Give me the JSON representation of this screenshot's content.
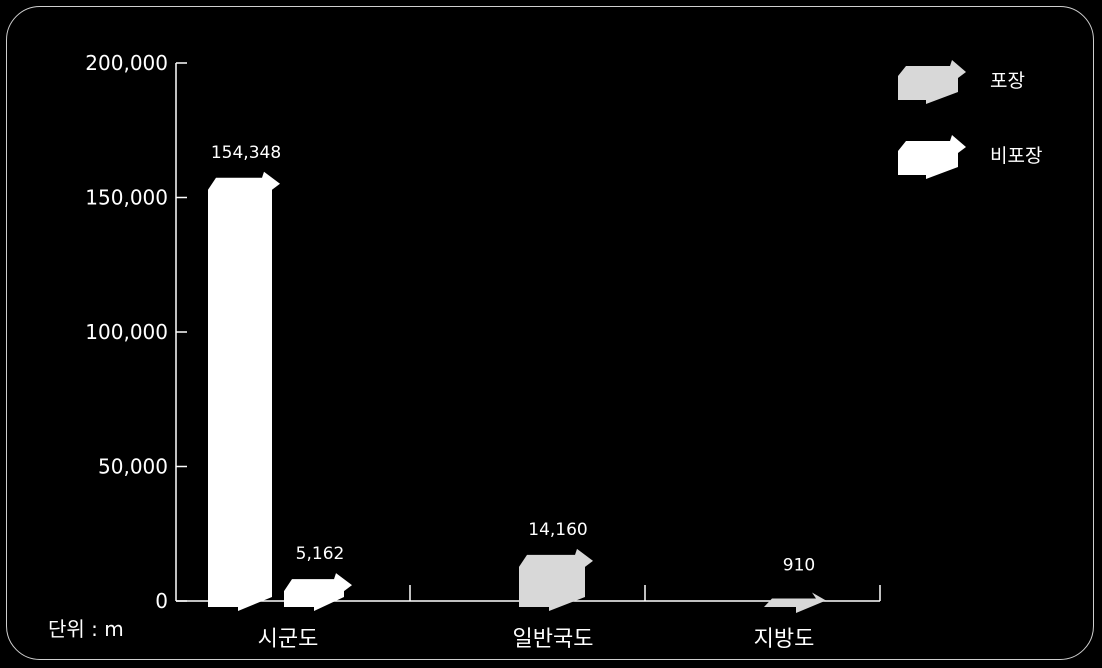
{
  "chart_data": {
    "type": "bar",
    "unit_label": "단위 : m",
    "categories": [
      "시군도",
      "일반국도",
      "지방도"
    ],
    "ylim": [
      0,
      200000
    ],
    "y_ticks": [
      "0",
      "50,000",
      "100,000",
      "150,000",
      "200,000"
    ],
    "series": [
      {
        "name": "포장",
        "values": [
          null,
          14160,
          910
        ],
        "color": "#d8d8d8"
      },
      {
        "name": "비포장",
        "values": [
          154348,
          5162,
          null
        ],
        "color": "#ffffff"
      }
    ],
    "data_labels": [
      "154,348",
      "5,162",
      "14,160",
      "910"
    ],
    "legend_position": "top-right",
    "grid": false
  }
}
